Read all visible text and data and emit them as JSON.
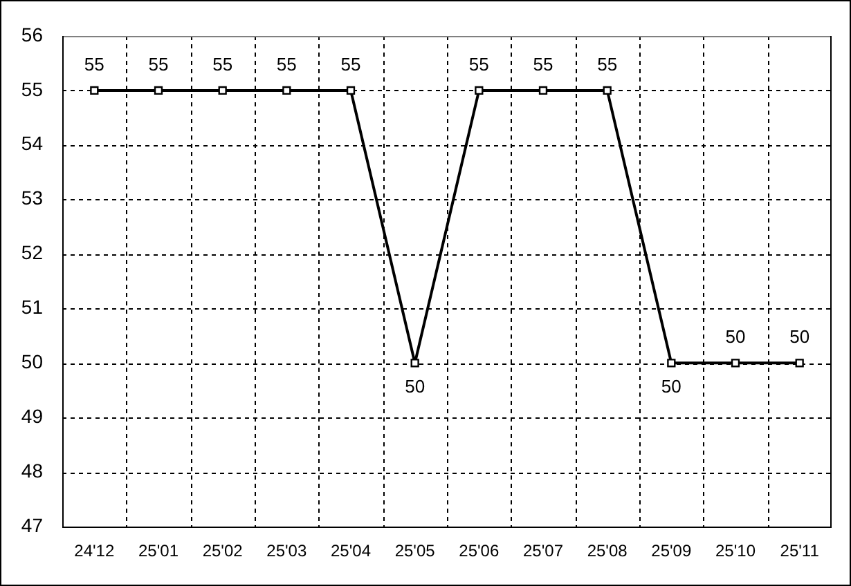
{
  "chart_data": {
    "type": "line",
    "categories": [
      "24'12",
      "25'01",
      "25'02",
      "25'03",
      "25'04",
      "25'05",
      "25'06",
      "25'07",
      "25'08",
      "25'09",
      "25'10",
      "25'11"
    ],
    "series": [
      {
        "color": "#000000",
        "values": [
          55,
          55,
          55,
          55,
          55,
          50,
          55,
          55,
          55,
          50,
          50,
          50
        ]
      }
    ],
    "ylim": [
      47,
      56
    ],
    "yticks": [
      47,
      48,
      49,
      50,
      51,
      52,
      53,
      54,
      55,
      56
    ],
    "grid": true,
    "marker": "square",
    "line_style": "solid",
    "data_labels": true
  }
}
